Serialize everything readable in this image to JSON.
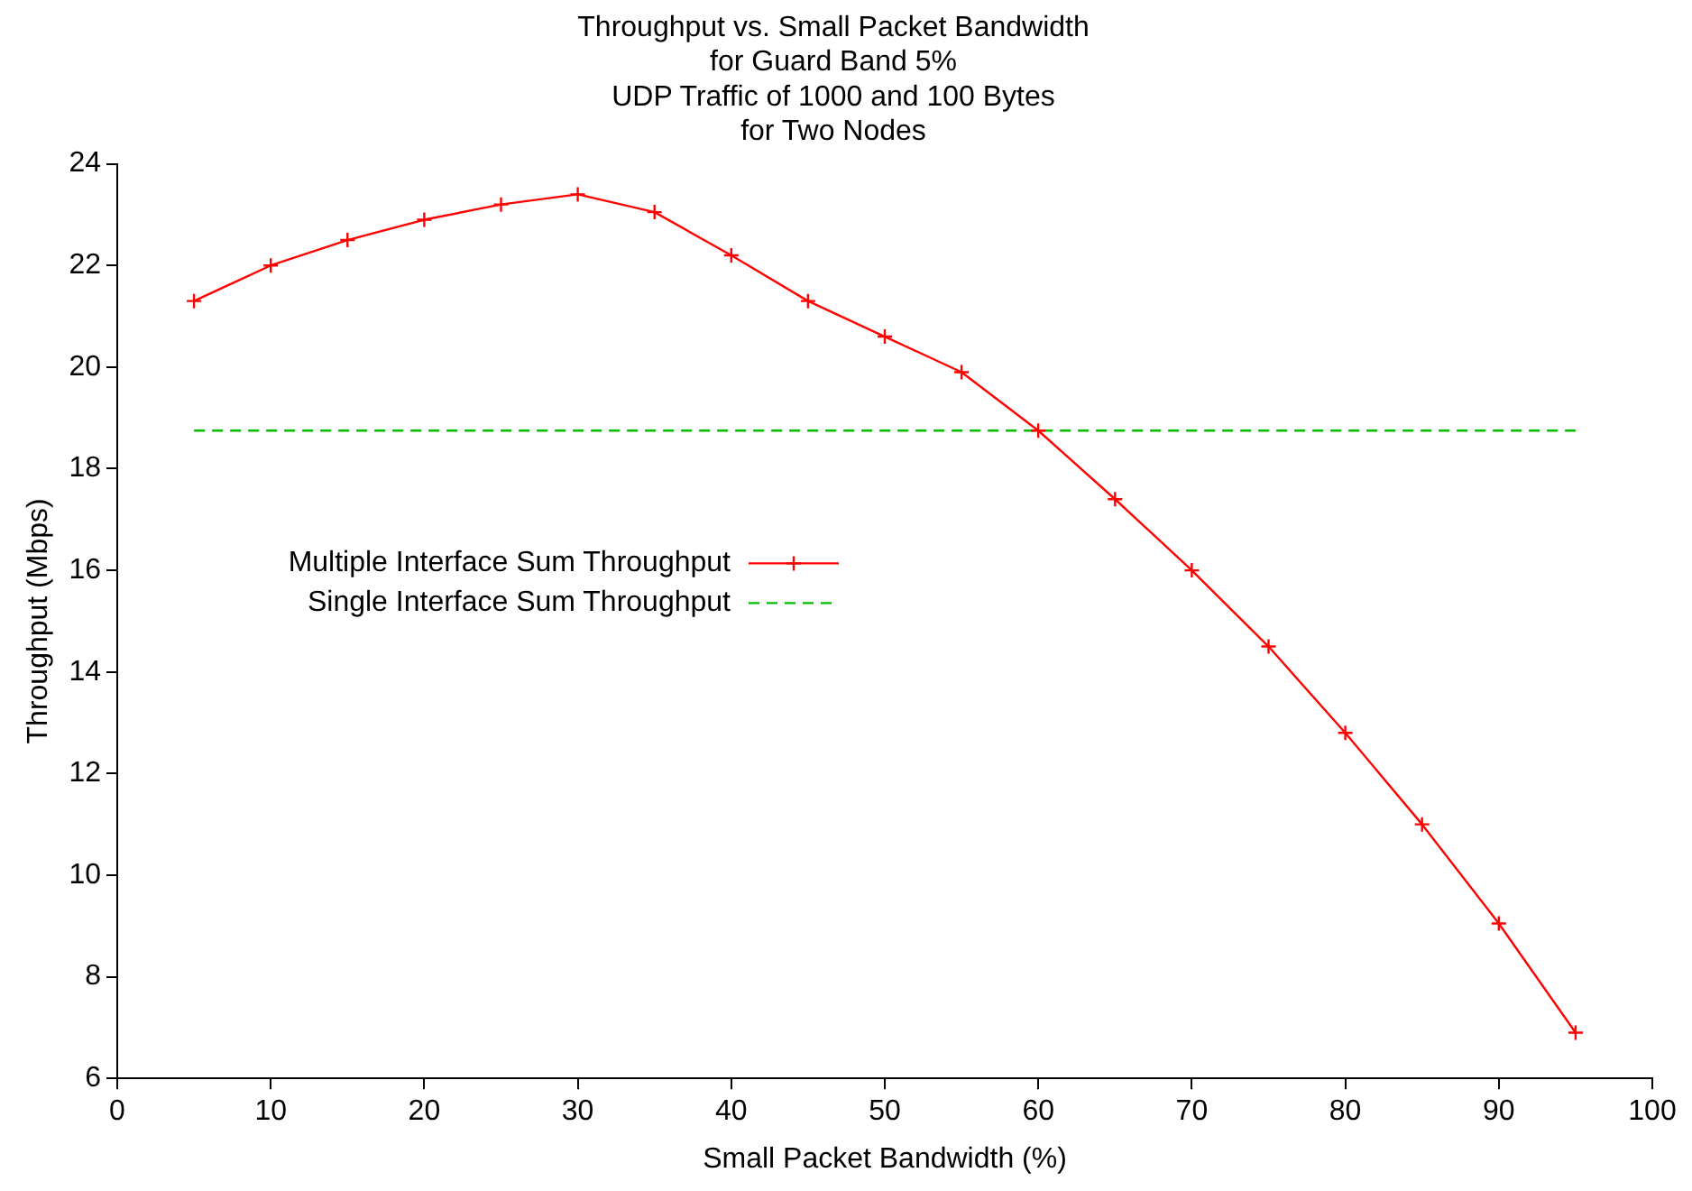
{
  "chart_data": {
    "type": "line",
    "title": "Throughput vs. Small Packet Bandwidth\nfor Guard Band 5%\nUDP Traffic of 1000 and 100 Bytes\nfor Two Nodes",
    "xlabel": "Small Packet Bandwidth (%)",
    "ylabel": "Throughput (Mbps)",
    "xlim": [
      0,
      100
    ],
    "xticks": [
      0,
      10,
      20,
      30,
      40,
      50,
      60,
      70,
      80,
      90,
      100
    ],
    "ylim": [
      6,
      24
    ],
    "yticks": [
      6,
      8,
      10,
      12,
      14,
      16,
      18,
      20,
      22,
      24
    ],
    "grid": false,
    "legend": "left",
    "series": [
      {
        "name": "Multiple Interface Sum Throughput",
        "color": "#ff0000",
        "marker": "cross",
        "line_style": "solid",
        "x": [
          5,
          10,
          15,
          20,
          25,
          30,
          35,
          40,
          45,
          50,
          55,
          60,
          65,
          70,
          75,
          80,
          85,
          90,
          95
        ],
        "values": [
          21.3,
          22.0,
          22.5,
          22.9,
          23.2,
          23.4,
          23.05,
          22.2,
          21.3,
          20.6,
          19.9,
          18.75,
          17.4,
          16.0,
          14.5,
          12.8,
          11.0,
          9.05,
          6.9
        ]
      },
      {
        "name": "Single Interface Sum Throughput",
        "color": "#00c000",
        "marker": "none",
        "line_style": "dashed",
        "x": [
          5,
          95
        ],
        "values": [
          18.75,
          18.75
        ]
      }
    ]
  }
}
